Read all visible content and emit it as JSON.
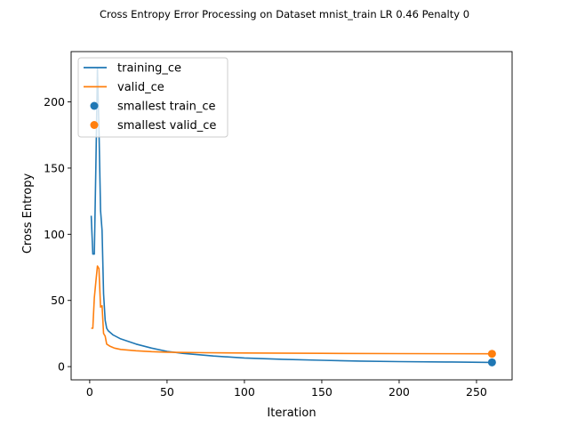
{
  "chart_data": {
    "type": "line",
    "title": "Cross Entropy Error Processing on Dataset mnist_train LR 0.46 Penalty 0",
    "xlabel": "Iteration",
    "ylabel": "Cross Entropy",
    "xlim": [
      -12,
      273
    ],
    "ylim": [
      -10,
      238
    ],
    "xticks": [
      0,
      50,
      100,
      150,
      200,
      250
    ],
    "yticks": [
      0,
      50,
      100,
      150,
      200
    ],
    "grid": false,
    "legend": "top-left",
    "series": [
      {
        "name": "training_ce",
        "color": "#1f77b4",
        "points": [
          [
            1,
            114
          ],
          [
            2,
            85
          ],
          [
            3,
            85
          ],
          [
            4,
            150
          ],
          [
            5,
            225
          ],
          [
            6,
            180
          ],
          [
            7,
            118
          ],
          [
            8,
            103
          ],
          [
            9,
            55
          ],
          [
            10,
            35
          ],
          [
            11,
            29
          ],
          [
            12,
            27
          ],
          [
            15,
            24
          ],
          [
            20,
            21
          ],
          [
            30,
            17
          ],
          [
            40,
            14
          ],
          [
            50,
            11.5
          ],
          [
            60,
            10
          ],
          [
            80,
            8
          ],
          [
            100,
            6.5
          ],
          [
            125,
            5.5
          ],
          [
            150,
            4.8
          ],
          [
            175,
            4.2
          ],
          [
            200,
            3.8
          ],
          [
            230,
            3.5
          ],
          [
            260,
            3.2
          ]
        ]
      },
      {
        "name": "valid_ce",
        "color": "#ff7f0e",
        "points": [
          [
            1,
            29
          ],
          [
            2,
            29
          ],
          [
            3,
            52
          ],
          [
            4,
            64
          ],
          [
            5,
            76
          ],
          [
            6,
            74
          ],
          [
            7,
            45
          ],
          [
            8,
            46
          ],
          [
            9,
            25
          ],
          [
            10,
            23
          ],
          [
            11,
            17
          ],
          [
            13,
            15.5
          ],
          [
            16,
            14
          ],
          [
            20,
            13
          ],
          [
            30,
            12
          ],
          [
            40,
            11.3
          ],
          [
            50,
            10.9
          ],
          [
            75,
            10.5
          ],
          [
            100,
            10.3
          ],
          [
            150,
            10
          ],
          [
            200,
            9.8
          ],
          [
            260,
            9.7
          ]
        ]
      },
      {
        "name": "smallest train_ce",
        "color": "#1f77b4",
        "marker": "point",
        "points": [
          [
            260,
            3.2
          ]
        ]
      },
      {
        "name": "smallest valid_ce",
        "color": "#ff7f0e",
        "marker": "point",
        "points": [
          [
            260,
            9.7
          ]
        ]
      }
    ]
  }
}
